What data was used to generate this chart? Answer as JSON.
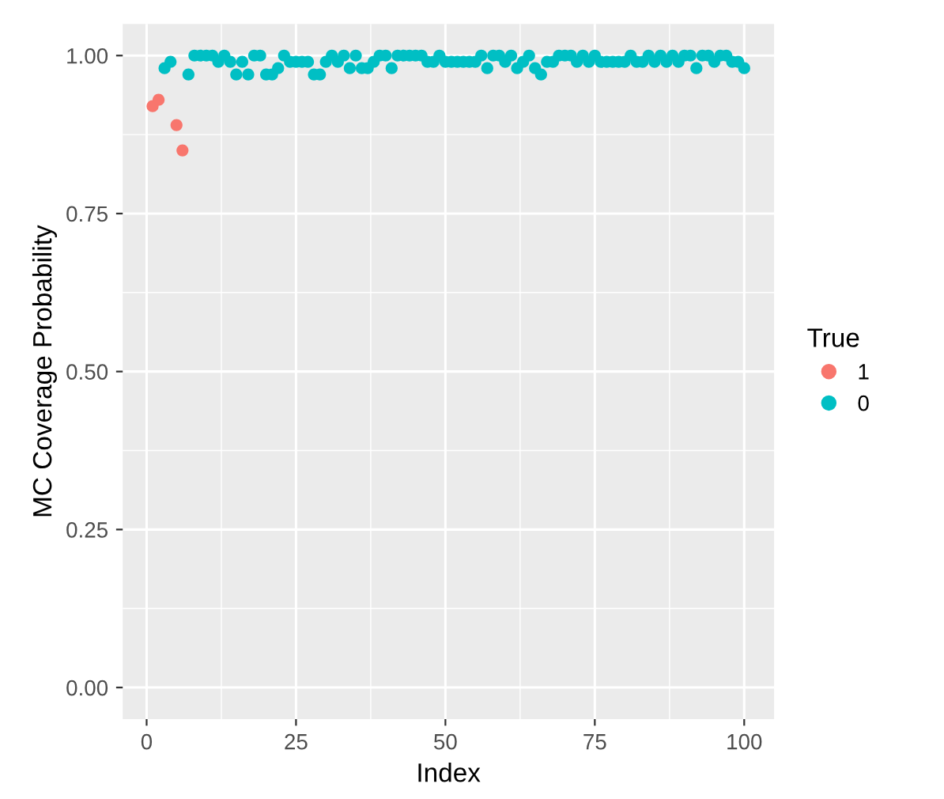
{
  "chart_data": {
    "type": "scatter",
    "xlabel": "Index",
    "ylabel": "MC Coverage Probability",
    "legend_title": "True",
    "legend": "right",
    "grid": true,
    "marker": "circle",
    "xlim": [
      -4,
      105
    ],
    "xticks": [
      0,
      25,
      50,
      75,
      100
    ],
    "ylim": [
      -0.05,
      1.05
    ],
    "yticks": [
      {
        "value": 0,
        "label": "0.00"
      },
      {
        "value": 0.25,
        "label": "0.25"
      },
      {
        "value": 0.5,
        "label": "0.50"
      },
      {
        "value": 0.75,
        "label": "0.75"
      },
      {
        "value": 1,
        "label": "1.00"
      }
    ],
    "series": [
      {
        "name": "1",
        "color": "#f8766d",
        "x": [
          1,
          2,
          5,
          6
        ],
        "values": [
          0.92,
          0.93,
          0.89,
          0.85
        ]
      },
      {
        "name": "0",
        "color": "#00bfc4",
        "x": [
          3,
          4,
          7,
          8,
          9,
          10,
          11,
          12,
          13,
          14,
          15,
          16,
          17,
          18,
          19,
          20,
          21,
          22,
          23,
          24,
          25,
          26,
          27,
          28,
          29,
          30,
          31,
          32,
          33,
          34,
          35,
          36,
          37,
          38,
          39,
          40,
          41,
          42,
          43,
          44,
          45,
          46,
          47,
          48,
          49,
          50,
          51,
          52,
          53,
          54,
          55,
          56,
          57,
          58,
          59,
          60,
          61,
          62,
          63,
          64,
          65,
          66,
          67,
          68,
          69,
          70,
          71,
          72,
          73,
          74,
          75,
          76,
          77,
          78,
          79,
          80,
          81,
          82,
          83,
          84,
          85,
          86,
          87,
          88,
          89,
          90,
          91,
          92,
          93,
          94,
          95,
          96,
          97,
          98,
          99,
          100
        ],
        "values": [
          0.98,
          0.99,
          0.97,
          1.0,
          1.0,
          1.0,
          1.0,
          0.99,
          1.0,
          0.99,
          0.97,
          0.99,
          0.97,
          1.0,
          1.0,
          0.97,
          0.97,
          0.98,
          1.0,
          0.99,
          0.99,
          0.99,
          0.99,
          0.97,
          0.97,
          0.99,
          1.0,
          0.99,
          1.0,
          0.98,
          1.0,
          0.98,
          0.98,
          0.99,
          1.0,
          1.0,
          0.98,
          1.0,
          1.0,
          1.0,
          1.0,
          1.0,
          0.99,
          0.99,
          1.0,
          0.99,
          0.99,
          0.99,
          0.99,
          0.99,
          0.99,
          1.0,
          0.98,
          1.0,
          1.0,
          0.99,
          1.0,
          0.98,
          0.99,
          1.0,
          0.98,
          0.97,
          0.99,
          0.99,
          1.0,
          1.0,
          1.0,
          0.99,
          1.0,
          0.99,
          1.0,
          0.99,
          0.99,
          0.99,
          0.99,
          0.99,
          1.0,
          0.99,
          0.99,
          1.0,
          0.99,
          1.0,
          0.99,
          1.0,
          0.99,
          1.0,
          1.0,
          0.98,
          1.0,
          1.0,
          0.99,
          1.0,
          1.0,
          0.99,
          0.99,
          0.98
        ]
      }
    ]
  }
}
